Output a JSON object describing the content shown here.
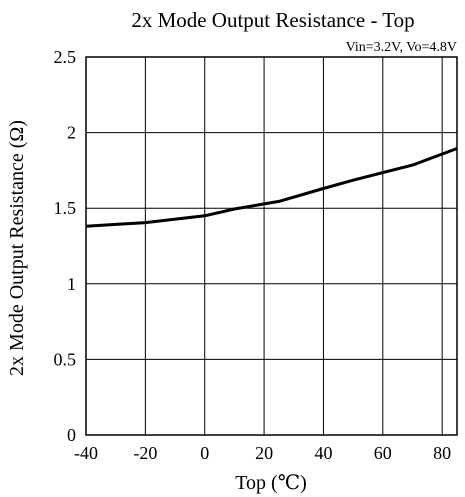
{
  "chart_data": {
    "type": "line",
    "title": "2x Mode Output Resistance - Top",
    "subtitle": "Vin=3.2V, Vo=4.8V",
    "xlabel": "Top (℃)",
    "ylabel": "2x Mode Output Resistance (Ω)",
    "xlim": [
      -40,
      85
    ],
    "ylim": [
      0,
      2.5
    ],
    "x_ticks": [
      -40,
      -20,
      0,
      20,
      40,
      60,
      80
    ],
    "y_ticks": [
      0,
      0.5,
      1,
      1.5,
      2,
      2.5
    ],
    "x_tick_labels": [
      "-40",
      "-20",
      "0",
      "20",
      "40",
      "60",
      "80"
    ],
    "y_tick_labels": [
      "0",
      "0.5",
      "1",
      "1.5",
      "2",
      "2.5"
    ],
    "grid": true,
    "legend": "none",
    "series": [
      {
        "color": "#000000",
        "x": [
          -40,
          -20,
          0,
          10,
          25,
          40,
          50,
          70,
          85
        ],
        "y": [
          1.38,
          1.405,
          1.45,
          1.495,
          1.545,
          1.63,
          1.685,
          1.785,
          1.895
        ]
      }
    ]
  }
}
